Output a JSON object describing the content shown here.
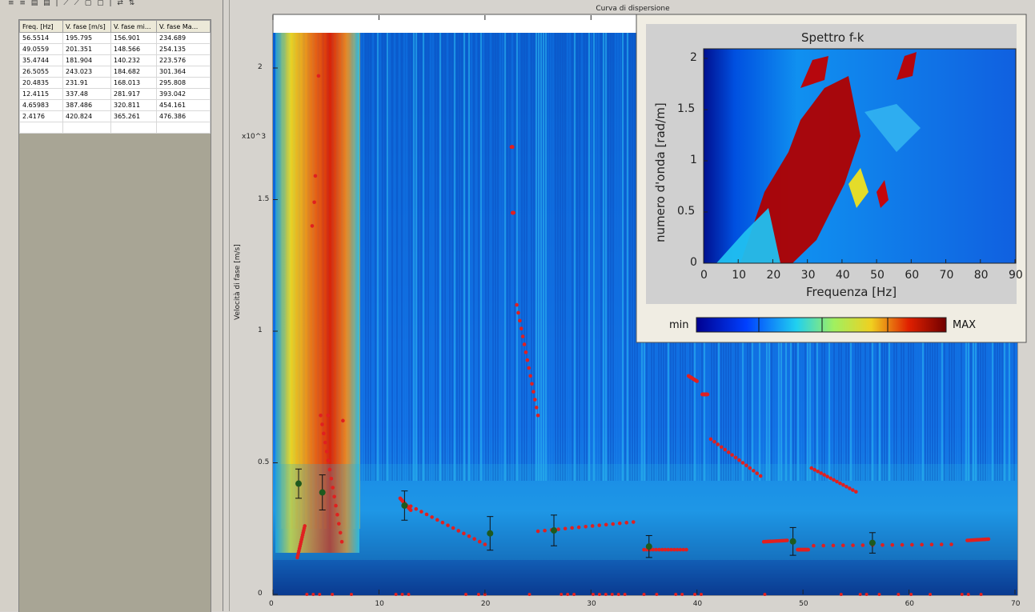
{
  "toolbar": {
    "icons": "≡ ≡ ▤ ▤ | ⟋ ⟋ ▢ ▢ | ⇄ ⇅"
  },
  "table": {
    "headers": [
      "Freq. [Hz]",
      "V. fase [m/s]",
      "V. fase mi...",
      "V. fase Ma..."
    ],
    "rows": [
      [
        "56.5514",
        "195.795",
        "156.901",
        "234.689"
      ],
      [
        "49.0559",
        "201.351",
        "148.566",
        "254.135"
      ],
      [
        "35.4744",
        "181.904",
        "140.232",
        "223.576"
      ],
      [
        "26.5055",
        "243.023",
        "184.682",
        "301.364"
      ],
      [
        "20.4835",
        "231.91",
        "168.013",
        "295.808"
      ],
      [
        "12.4115",
        "337.48",
        "281.917",
        "393.042"
      ],
      [
        "4.65983",
        "387.486",
        "320.811",
        "454.161"
      ],
      [
        "2.4176",
        "420.824",
        "365.261",
        "476.386"
      ],
      [
        "",
        "",
        "",
        ""
      ]
    ]
  },
  "main_chart": {
    "title": "Curva di dispersione",
    "ylabel": "Velocità di fase  [m/s]",
    "y_multiplier": "x10^3",
    "xticks": [
      "0",
      "10",
      "20",
      "30",
      "40",
      "50",
      "60",
      "70"
    ],
    "yticks": [
      "0",
      "0.5",
      "1",
      "1.5",
      "2"
    ]
  },
  "inset": {
    "title": "Spettro f-k",
    "xlabel": "Frequenza [Hz]",
    "ylabel": "numero d'onda [rad/m]",
    "xticks": [
      "0",
      "10",
      "20",
      "30",
      "40",
      "50",
      "60",
      "70",
      "80",
      "90"
    ],
    "yticks": [
      "0",
      "0.5",
      "1",
      "1.5",
      "2"
    ],
    "cbar_min": "min",
    "cbar_max": "MAX"
  },
  "chart_data": {
    "type": "scatter",
    "title": "Curva di dispersione",
    "xlabel": "",
    "ylabel": "Velocità di fase  [m/s]",
    "xlim": [
      0,
      70
    ],
    "ylim": [
      0,
      2150
    ],
    "picks": [
      {
        "x": 2.4176,
        "y": 420.824,
        "ymin": 365.261,
        "ymax": 476.386
      },
      {
        "x": 4.65983,
        "y": 387.486,
        "ymin": 320.811,
        "ymax": 454.161
      },
      {
        "x": 12.4115,
        "y": 337.48,
        "ymin": 281.917,
        "ymax": 393.042
      },
      {
        "x": 20.4835,
        "y": 231.91,
        "ymin": 168.013,
        "ymax": 295.808
      },
      {
        "x": 26.5055,
        "y": 243.023,
        "ymin": 184.682,
        "ymax": 301.364
      },
      {
        "x": 35.4744,
        "y": 181.904,
        "ymin": 140.232,
        "ymax": 223.576
      },
      {
        "x": 49.0559,
        "y": 201.351,
        "ymin": 148.566,
        "ymax": 254.135
      },
      {
        "x": 56.5514,
        "y": 195.795,
        "ymin": 156.901,
        "ymax": 234.689
      }
    ],
    "colors": {
      "pick": "#1e5a1e",
      "maxima": "#e02020"
    }
  }
}
